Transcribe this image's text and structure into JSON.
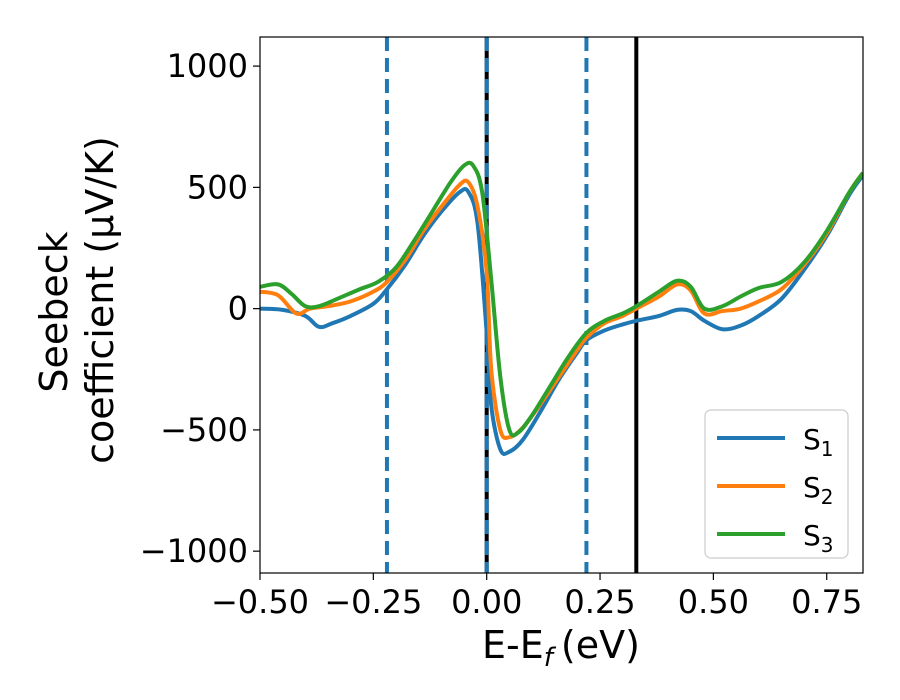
{
  "chart_data": {
    "type": "line",
    "xlabel": "E-E",
    "xlabel_sub": "f",
    "xlabel_unit": "(eV)",
    "ylabel_line1": "Seebeck",
    "ylabel_line2": "coefficient  (μV/K)",
    "xlim": [
      -0.5,
      0.83
    ],
    "ylim": [
      -1090,
      1120
    ],
    "xticks": [
      -0.5,
      -0.25,
      0.0,
      0.25,
      0.5,
      0.75
    ],
    "xtick_labels": [
      "−0.50",
      "−0.25",
      "0.00",
      "0.25",
      "0.50",
      "0.75"
    ],
    "yticks": [
      -1000,
      -500,
      0,
      500,
      1000
    ],
    "ytick_labels": [
      "−1000",
      "−500",
      "0",
      "500",
      "1000"
    ],
    "grid": false,
    "legend_position": "lower-right",
    "vlines": [
      {
        "x": -0.22,
        "style": "dashed",
        "color": "#1f77b4"
      },
      {
        "x": 0.0,
        "style": "solid",
        "color": "#000000"
      },
      {
        "x": 0.0,
        "style": "dashed",
        "color": "#1f77b4"
      },
      {
        "x": 0.22,
        "style": "dashed",
        "color": "#1f77b4"
      },
      {
        "x": 0.33,
        "style": "solid",
        "color": "#000000"
      }
    ],
    "series": [
      {
        "name": "S",
        "sub": "1",
        "color": "#1f77b4",
        "points": [
          [
            -0.5,
            0
          ],
          [
            -0.45,
            -5
          ],
          [
            -0.4,
            -30
          ],
          [
            -0.37,
            -75
          ],
          [
            -0.34,
            -60
          ],
          [
            -0.3,
            -30
          ],
          [
            -0.25,
            20
          ],
          [
            -0.22,
            80
          ],
          [
            -0.18,
            180
          ],
          [
            -0.14,
            300
          ],
          [
            -0.1,
            400
          ],
          [
            -0.06,
            480
          ],
          [
            -0.04,
            480
          ],
          [
            -0.02,
            350
          ],
          [
            0.0,
            -100
          ],
          [
            0.01,
            -400
          ],
          [
            0.03,
            -580
          ],
          [
            0.05,
            -590
          ],
          [
            0.08,
            -540
          ],
          [
            0.12,
            -420
          ],
          [
            0.16,
            -290
          ],
          [
            0.2,
            -180
          ],
          [
            0.22,
            -130
          ],
          [
            0.26,
            -90
          ],
          [
            0.3,
            -65
          ],
          [
            0.33,
            -50
          ],
          [
            0.38,
            -30
          ],
          [
            0.42,
            -5
          ],
          [
            0.45,
            -10
          ],
          [
            0.48,
            -50
          ],
          [
            0.52,
            -85
          ],
          [
            0.56,
            -70
          ],
          [
            0.6,
            -30
          ],
          [
            0.65,
            40
          ],
          [
            0.7,
            160
          ],
          [
            0.75,
            300
          ],
          [
            0.8,
            470
          ],
          [
            0.83,
            550
          ]
        ]
      },
      {
        "name": "S",
        "sub": "2",
        "color": "#ff7f0e",
        "points": [
          [
            -0.5,
            70
          ],
          [
            -0.46,
            55
          ],
          [
            -0.42,
            -20
          ],
          [
            -0.39,
            0
          ],
          [
            -0.35,
            10
          ],
          [
            -0.3,
            30
          ],
          [
            -0.25,
            70
          ],
          [
            -0.22,
            110
          ],
          [
            -0.18,
            200
          ],
          [
            -0.14,
            320
          ],
          [
            -0.1,
            420
          ],
          [
            -0.06,
            510
          ],
          [
            -0.04,
            520
          ],
          [
            -0.02,
            420
          ],
          [
            0.0,
            150
          ],
          [
            0.01,
            -250
          ],
          [
            0.03,
            -500
          ],
          [
            0.05,
            -530
          ],
          [
            0.08,
            -490
          ],
          [
            0.12,
            -390
          ],
          [
            0.16,
            -280
          ],
          [
            0.2,
            -170
          ],
          [
            0.22,
            -120
          ],
          [
            0.26,
            -60
          ],
          [
            0.3,
            -30
          ],
          [
            0.33,
            0
          ],
          [
            0.38,
            50
          ],
          [
            0.42,
            100
          ],
          [
            0.45,
            75
          ],
          [
            0.48,
            -20
          ],
          [
            0.52,
            -10
          ],
          [
            0.56,
            0
          ],
          [
            0.6,
            30
          ],
          [
            0.65,
            80
          ],
          [
            0.7,
            180
          ],
          [
            0.75,
            310
          ],
          [
            0.8,
            480
          ],
          [
            0.83,
            560
          ]
        ]
      },
      {
        "name": "S",
        "sub": "3",
        "color": "#2ca02c",
        "points": [
          [
            -0.5,
            90
          ],
          [
            -0.46,
            100
          ],
          [
            -0.43,
            60
          ],
          [
            -0.4,
            10
          ],
          [
            -0.37,
            10
          ],
          [
            -0.33,
            40
          ],
          [
            -0.28,
            80
          ],
          [
            -0.24,
            110
          ],
          [
            -0.2,
            170
          ],
          [
            -0.16,
            280
          ],
          [
            -0.12,
            400
          ],
          [
            -0.08,
            520
          ],
          [
            -0.05,
            590
          ],
          [
            -0.03,
            590
          ],
          [
            -0.01,
            480
          ],
          [
            0.01,
            120
          ],
          [
            0.03,
            -280
          ],
          [
            0.05,
            -500
          ],
          [
            0.07,
            -510
          ],
          [
            0.1,
            -440
          ],
          [
            0.14,
            -320
          ],
          [
            0.18,
            -200
          ],
          [
            0.22,
            -100
          ],
          [
            0.26,
            -50
          ],
          [
            0.3,
            -20
          ],
          [
            0.33,
            10
          ],
          [
            0.38,
            70
          ],
          [
            0.42,
            115
          ],
          [
            0.45,
            90
          ],
          [
            0.48,
            0
          ],
          [
            0.52,
            10
          ],
          [
            0.56,
            50
          ],
          [
            0.6,
            85
          ],
          [
            0.65,
            110
          ],
          [
            0.7,
            190
          ],
          [
            0.75,
            320
          ],
          [
            0.8,
            480
          ],
          [
            0.83,
            560
          ]
        ]
      }
    ]
  }
}
